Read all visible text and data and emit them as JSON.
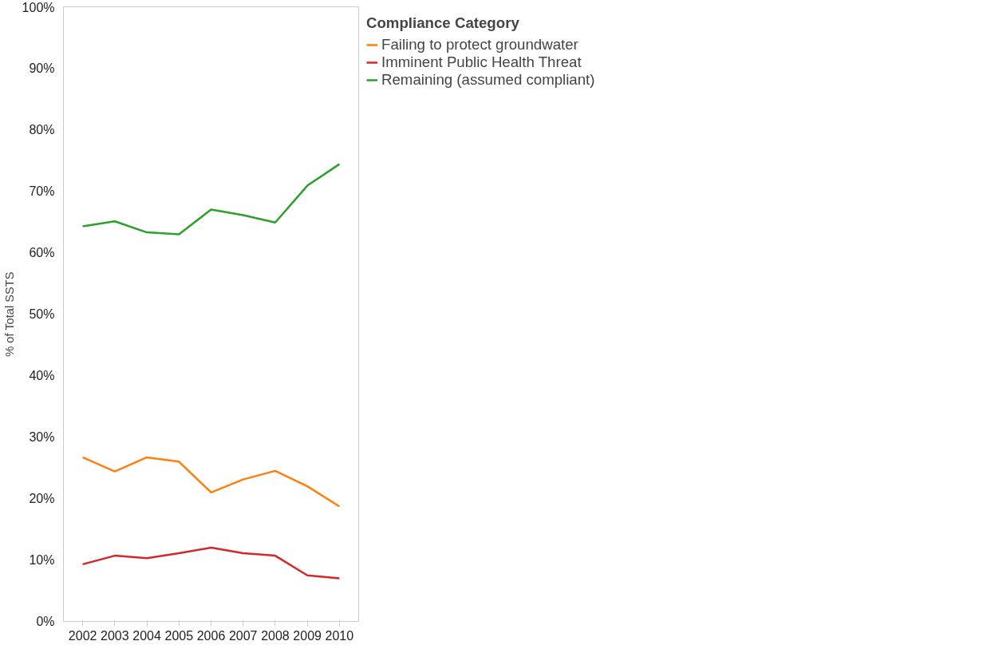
{
  "chart_data": {
    "type": "line",
    "ylabel": "% of Total SSTS",
    "legend_title": "Compliance Category",
    "categories": [
      "2002",
      "2003",
      "2004",
      "2005",
      "2006",
      "2007",
      "2008",
      "2009",
      "2010"
    ],
    "series": [
      {
        "name": "Failing to protect groundwater",
        "color": "#ff7f0e",
        "values": [
          26.7,
          24.4,
          26.7,
          26.0,
          21.0,
          23.1,
          24.5,
          22.0,
          18.7
        ]
      },
      {
        "name": "Imminent Public Health Threat",
        "color": "#d62728",
        "values": [
          9.3,
          10.7,
          10.3,
          11.1,
          12.0,
          11.1,
          10.7,
          7.5,
          7.0
        ]
      },
      {
        "name": "Remaining (assumed compliant)",
        "color": "#2ca02c",
        "values": [
          64.3,
          65.1,
          63.3,
          63.0,
          67.0,
          66.1,
          64.9,
          70.9,
          74.4
        ]
      }
    ],
    "ylim": [
      0,
      100
    ],
    "yticks": [
      {
        "value": 0,
        "label": "0%"
      },
      {
        "value": 10,
        "label": "10%"
      },
      {
        "value": 20,
        "label": "20%"
      },
      {
        "value": 30,
        "label": "30%"
      },
      {
        "value": 40,
        "label": "40%"
      },
      {
        "value": 50,
        "label": "50%"
      },
      {
        "value": 60,
        "label": "60%"
      },
      {
        "value": 70,
        "label": "70%"
      },
      {
        "value": 80,
        "label": "80%"
      },
      {
        "value": 90,
        "label": "90%"
      },
      {
        "value": 100,
        "label": "100%"
      }
    ],
    "grid": false,
    "legend": "top right",
    "line_style": "solid",
    "marker": "none"
  }
}
